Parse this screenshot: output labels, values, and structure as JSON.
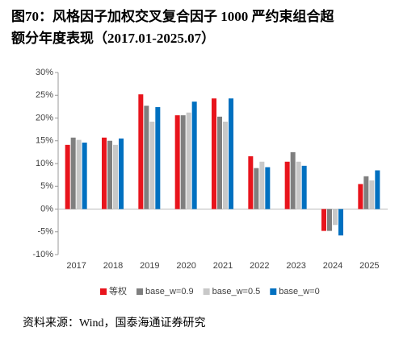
{
  "header": {
    "title_line1": "图70：风格因子加权交叉复合因子 1000 严约束组合超",
    "title_line2": "额分年度表现（2017.01-2025.07）"
  },
  "chart_data": {
    "type": "bar",
    "categories": [
      "2017",
      "2018",
      "2019",
      "2020",
      "2021",
      "2022",
      "2023",
      "2024",
      "2025"
    ],
    "series": [
      {
        "name": "等权",
        "color": "#e8141c",
        "values": [
          14.1,
          15.7,
          25.2,
          20.6,
          24.3,
          11.6,
          10.4,
          -4.8,
          5.5
        ]
      },
      {
        "name": "base_w=0.9",
        "color": "#7f7f7f",
        "values": [
          15.7,
          15.0,
          22.7,
          20.6,
          20.3,
          9.0,
          12.5,
          -4.8,
          7.2
        ]
      },
      {
        "name": "base_w=0.5",
        "color": "#c8c8c8",
        "values": [
          15.2,
          14.1,
          19.2,
          21.2,
          19.2,
          10.4,
          10.4,
          -3.5,
          6.3
        ]
      },
      {
        "name": "base_w=0",
        "color": "#0070c0",
        "values": [
          14.6,
          15.5,
          22.4,
          23.6,
          24.3,
          9.2,
          9.5,
          -5.8,
          8.5
        ]
      }
    ],
    "ylim": [
      -10,
      30
    ],
    "yticks": [
      {
        "value": -10,
        "label": "-10%"
      },
      {
        "value": -5,
        "label": "-5%"
      },
      {
        "value": 0,
        "label": "0%"
      },
      {
        "value": 5,
        "label": "5%"
      },
      {
        "value": 10,
        "label": "10%"
      },
      {
        "value": 15,
        "label": "15%"
      },
      {
        "value": 20,
        "label": "20%"
      },
      {
        "value": 25,
        "label": "25%"
      },
      {
        "value": 30,
        "label": "30%"
      }
    ],
    "legend": "bottom"
  },
  "footer": {
    "source": "资料来源：Wind，国泰海通证券研究"
  }
}
